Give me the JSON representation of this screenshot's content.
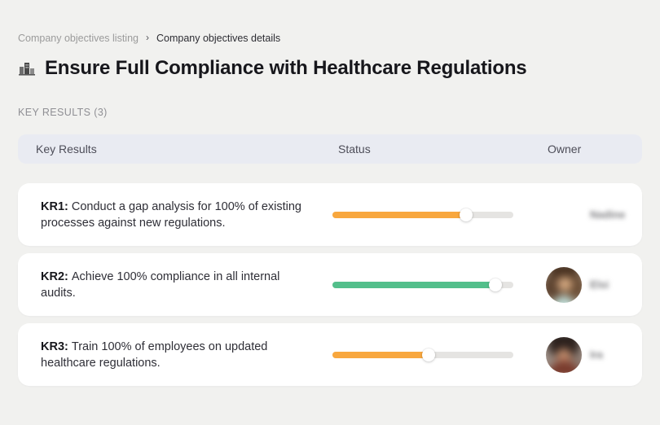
{
  "breadcrumb": {
    "listing_label": "Company objectives listing",
    "separator": "›",
    "details_label": "Company objectives details"
  },
  "header": {
    "title": "Ensure Full Compliance with Healthcare Regulations",
    "title_icon": "buildings-icon",
    "section_label": "KEY RESULTS (3)"
  },
  "table": {
    "headers": {
      "key_results": "Key Results",
      "status": "Status",
      "owner": "Owner"
    },
    "rows": [
      {
        "kr_label": "KR1:",
        "kr_text": "Conduct a gap analysis for 100% of existing processes against new regulations.",
        "progress_percent": 74,
        "progress_color": "#F8A73E",
        "owner_name": "Nadine",
        "owner_name_blurred": true
      },
      {
        "kr_label": "KR2:",
        "kr_text": "Achieve 100% compliance in all internal audits.",
        "progress_percent": 90,
        "progress_color": "#53BF8B",
        "owner_name": "Elsi",
        "owner_name_blurred": true
      },
      {
        "kr_label": "KR3:",
        "kr_text": "Train 100% of employees on updated healthcare regulations.",
        "progress_percent": 53,
        "progress_color": "#F8A73E",
        "owner_name": "Ira",
        "owner_name_blurred": true
      }
    ]
  },
  "colors": {
    "page_background": "#F1F1EF",
    "table_header_background": "#E9EBF2",
    "card_background": "#FFFFFF",
    "progress_track": "#E5E4E2",
    "progress_orange": "#F8A73E",
    "progress_green": "#53BF8B"
  }
}
